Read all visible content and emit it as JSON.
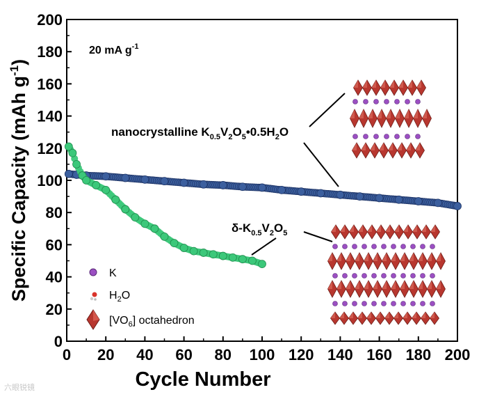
{
  "chart_data": {
    "type": "scatter",
    "title": "",
    "xlabel": "Cycle Number",
    "ylabel_main": "Specific Capacity (mAh g",
    "ylabel_sup": "-1",
    "ylabel_close": ")",
    "xlim": [
      0,
      200
    ],
    "ylim": [
      0,
      200
    ],
    "xticks": [
      0,
      20,
      40,
      60,
      80,
      100,
      120,
      140,
      160,
      180,
      200
    ],
    "yticks": [
      0,
      20,
      40,
      60,
      80,
      100,
      120,
      140,
      160,
      180,
      200
    ],
    "condition": {
      "value": "20 mA g",
      "sup": "-1"
    },
    "series": [
      {
        "name": "nanocrystalline K0.5V2O5·0.5H2O",
        "color": "#3c5f9e",
        "x": [
          1,
          5,
          10,
          20,
          30,
          40,
          50,
          60,
          70,
          80,
          90,
          100,
          110,
          120,
          130,
          140,
          150,
          160,
          170,
          180,
          190,
          200
        ],
        "y": [
          104,
          103.5,
          103,
          102.5,
          101.5,
          100.5,
          99.5,
          98.5,
          97.5,
          97,
          96,
          95.5,
          94,
          93,
          92,
          91,
          90,
          89,
          88,
          87,
          86,
          84
        ]
      },
      {
        "name": "δ-K0.5V2O5",
        "color": "#3cc87a",
        "x": [
          1,
          3,
          5,
          8,
          10,
          15,
          20,
          25,
          30,
          35,
          40,
          45,
          50,
          55,
          60,
          65,
          70,
          75,
          80,
          85,
          90,
          95,
          100
        ],
        "y": [
          121,
          117,
          110,
          103,
          100,
          97,
          94,
          88,
          82,
          77,
          73,
          70,
          65,
          61,
          58,
          56,
          55,
          54,
          53,
          52,
          51,
          50,
          48
        ]
      }
    ],
    "annotations": [
      {
        "id": "hydrated",
        "main": "nanocrystalline K",
        "s1": "0.5",
        "m1": "V",
        "s2": "2",
        "m2": "O",
        "s3": "5",
        "m3": "•0.5H",
        "s4": "2",
        "m4": "O"
      },
      {
        "id": "delta",
        "main": "δ-K",
        "s1": "0.5",
        "m1": "V",
        "s2": "2",
        "m2": "O",
        "s3": "5"
      }
    ],
    "legend": {
      "position": "bottom-left",
      "items": [
        {
          "kind": "k-atom",
          "label": "K",
          "color": "#9b4fc2"
        },
        {
          "kind": "water",
          "label_main": "H",
          "label_sub": "2",
          "label_end": "O",
          "color": "#d9342b"
        },
        {
          "kind": "octahedron",
          "label_main": "[VO",
          "label_sub": "6",
          "label_end": "] octahedron",
          "color": "#b8372f"
        }
      ]
    }
  },
  "watermark": "六眼锐镜"
}
